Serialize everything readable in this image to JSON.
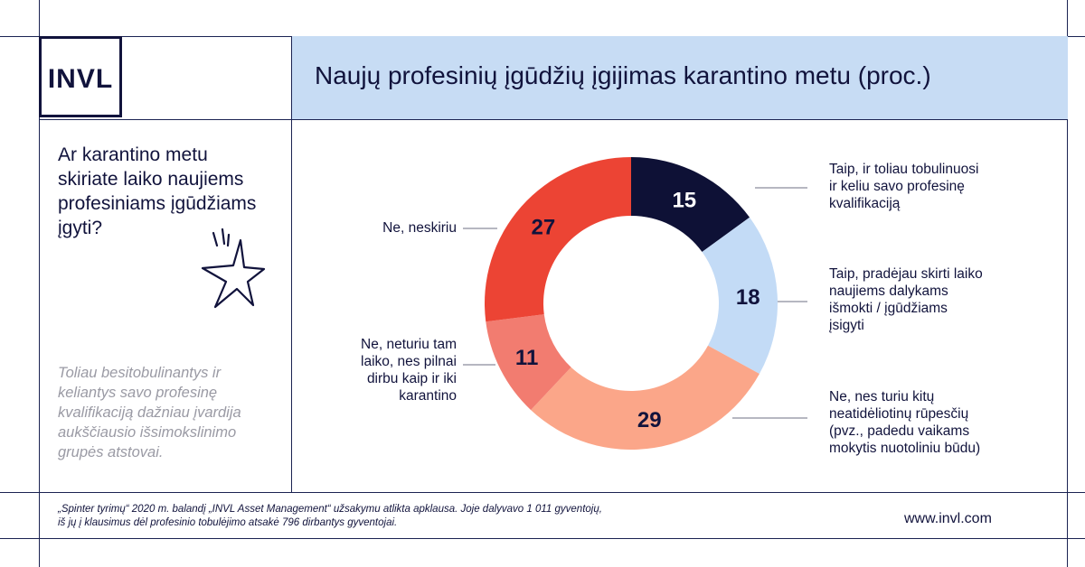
{
  "brand": {
    "logo_text": "INVL",
    "website": "www.invl.com"
  },
  "title": "Naujų profesinių įgūdžių įgijimas karantino metu (proc.)",
  "question_lines": [
    "Ar karantino metu",
    "skiriate laiko naujiems",
    "profesiniams įgūdžiams",
    "įgyti?"
  ],
  "note_lines": [
    "Toliau besitobulinantys ir",
    "keliantys savo profesinę",
    "kvalifikaciją dažniau įvardija",
    "aukščiausio išsimokslinimo",
    "grupės atstovai."
  ],
  "footnote_lines": [
    "„Spinter tyrimų“ 2020 m. balandį „INVL Asset Management“ užsakymu atlikta apklausa. Joje dalyvavo 1 011 gyventojų,",
    "iš jų į klausimus dėl profesinio tobulėjimo atsakė 796 dirbantys gyventojai."
  ],
  "colors": {
    "accent": "#c7dcf4",
    "dark": "#11133c",
    "line": "#1b2352"
  },
  "chart_data": {
    "type": "pie",
    "donut": true,
    "title": "Naujų profesinių įgūdžių įgijimas karantino metu (proc.)",
    "slices": [
      {
        "label_lines": [
          "Taip, ir toliau tobulinuosi",
          "ir keliu savo profesinę",
          "kvalifikaciją"
        ],
        "value": 15,
        "color": "#0e1136",
        "text_color": "#ffffff"
      },
      {
        "label_lines": [
          "Taip, pradėjau skirti laiko",
          "naujiems dalykams",
          "išmokti / įgūdžiams",
          "įsigyti"
        ],
        "value": 18,
        "color": "#c3dbf6",
        "text_color": "#11133c"
      },
      {
        "label_lines": [
          "Ne, nes turiu kitų",
          "neatidėliotinų rūpesčių",
          "(pvz., padedu vaikams",
          "mokytis nuotoliniu būdu)"
        ],
        "value": 29,
        "color": "#fba689",
        "text_color": "#11133c"
      },
      {
        "label_lines": [
          "Ne, neturiu tam",
          "laiko, nes pilnai",
          "dirbu kaip ir iki",
          "karantino"
        ],
        "value": 11,
        "color": "#f27c70",
        "text_color": "#11133c"
      },
      {
        "label_lines": [
          "Ne, neskiriu"
        ],
        "value": 27,
        "color": "#ec4434",
        "text_color": "#11133c"
      }
    ]
  }
}
